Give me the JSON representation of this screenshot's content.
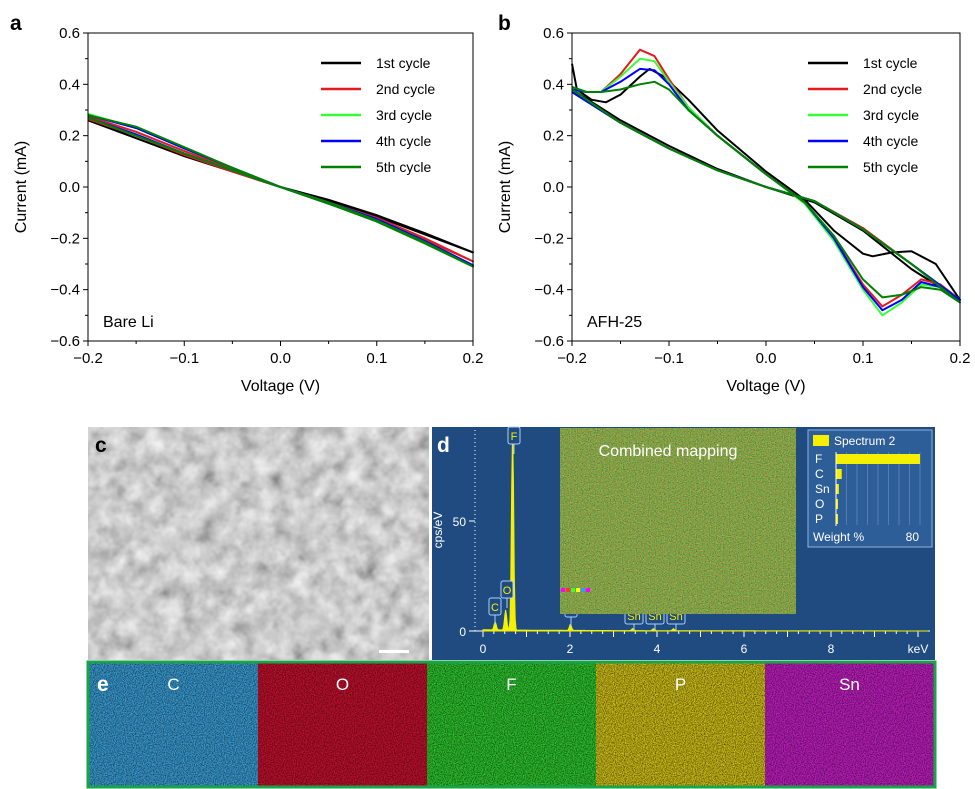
{
  "panel_labels": {
    "a": "a",
    "b": "b",
    "c": "c",
    "d": "d",
    "e": "e"
  },
  "legend_labels": [
    "1st cycle",
    "2nd cycle",
    "3rd cycle",
    "4th cycle",
    "5th cycle"
  ],
  "chart_data": [
    {
      "panel": "a",
      "type": "line",
      "title": "",
      "annotation": "Bare Li",
      "xlabel": "Voltage (V)",
      "ylabel": "Current (mA)",
      "xlim": [
        -0.2,
        0.2
      ],
      "ylim": [
        -0.6,
        0.6
      ],
      "xticks": [
        -0.2,
        -0.1,
        0.0,
        0.1,
        0.2
      ],
      "xtick_labels": [
        "−0.2",
        "−0.1",
        "0.0",
        "0.1",
        "0.2"
      ],
      "yticks": [
        -0.6,
        -0.4,
        -0.2,
        0.0,
        0.2,
        0.4,
        0.6
      ],
      "ytick_labels": [
        "−0.6",
        "−0.4",
        "−0.2",
        "0.0",
        "0.2",
        "0.4",
        "0.6"
      ],
      "legend": "top-right",
      "grid": false,
      "series": [
        {
          "name": "1st cycle",
          "color": "#000000",
          "points": [
            [
              -0.2,
              0.26
            ],
            [
              -0.15,
              0.19
            ],
            [
              -0.1,
              0.12
            ],
            [
              -0.05,
              0.06
            ],
            [
              0,
              0
            ],
            [
              0.05,
              -0.05
            ],
            [
              0.1,
              -0.11
            ],
            [
              0.15,
              -0.18
            ],
            [
              0.2,
              -0.255
            ],
            [
              0.15,
              -0.185
            ],
            [
              0.1,
              -0.115
            ],
            [
              0.05,
              -0.055
            ],
            [
              0,
              0
            ],
            [
              -0.05,
              0.065
            ],
            [
              -0.1,
              0.13
            ],
            [
              -0.15,
              0.2
            ],
            [
              -0.2,
              0.265
            ]
          ]
        },
        {
          "name": "2nd cycle",
          "color": "#e41a1c",
          "points": [
            [
              -0.2,
              0.265
            ],
            [
              -0.15,
              0.2
            ],
            [
              -0.1,
              0.125
            ],
            [
              -0.05,
              0.06
            ],
            [
              0,
              0
            ],
            [
              0.05,
              -0.06
            ],
            [
              0.1,
              -0.12
            ],
            [
              0.15,
              -0.2
            ],
            [
              0.2,
              -0.29
            ],
            [
              0.15,
              -0.205
            ],
            [
              0.1,
              -0.125
            ],
            [
              0.05,
              -0.06
            ],
            [
              0,
              0
            ],
            [
              -0.05,
              0.07
            ],
            [
              -0.1,
              0.14
            ],
            [
              -0.15,
              0.215
            ],
            [
              -0.2,
              0.275
            ]
          ]
        },
        {
          "name": "3rd cycle",
          "color": "#33ff33",
          "points": [
            [
              -0.2,
              0.27
            ],
            [
              -0.15,
              0.205
            ],
            [
              -0.1,
              0.13
            ],
            [
              -0.05,
              0.065
            ],
            [
              0,
              0
            ],
            [
              0.05,
              -0.06
            ],
            [
              0.1,
              -0.125
            ],
            [
              0.15,
              -0.21
            ],
            [
              0.2,
              -0.305
            ],
            [
              0.15,
              -0.215
            ],
            [
              0.1,
              -0.13
            ],
            [
              0.05,
              -0.065
            ],
            [
              0,
              0
            ],
            [
              -0.05,
              0.075
            ],
            [
              -0.1,
              0.15
            ],
            [
              -0.15,
              0.23
            ],
            [
              -0.2,
              0.285
            ]
          ]
        },
        {
          "name": "4th cycle",
          "color": "#0000ff",
          "points": [
            [
              -0.2,
              0.27
            ],
            [
              -0.15,
              0.205
            ],
            [
              -0.1,
              0.13
            ],
            [
              -0.05,
              0.065
            ],
            [
              0,
              0
            ],
            [
              0.05,
              -0.06
            ],
            [
              0.1,
              -0.125
            ],
            [
              0.15,
              -0.21
            ],
            [
              0.2,
              -0.305
            ],
            [
              0.15,
              -0.215
            ],
            [
              0.1,
              -0.13
            ],
            [
              0.05,
              -0.065
            ],
            [
              0,
              0
            ],
            [
              -0.05,
              0.075
            ],
            [
              -0.1,
              0.15
            ],
            [
              -0.15,
              0.23
            ],
            [
              -0.2,
              0.28
            ]
          ]
        },
        {
          "name": "5th cycle",
          "color": "#008000",
          "points": [
            [
              -0.2,
              0.27
            ],
            [
              -0.15,
              0.2
            ],
            [
              -0.1,
              0.13
            ],
            [
              -0.05,
              0.065
            ],
            [
              0,
              0
            ],
            [
              0.05,
              -0.06
            ],
            [
              0.1,
              -0.13
            ],
            [
              0.15,
              -0.215
            ],
            [
              0.2,
              -0.31
            ],
            [
              0.15,
              -0.22
            ],
            [
              0.1,
              -0.135
            ],
            [
              0.05,
              -0.065
            ],
            [
              0,
              0
            ],
            [
              -0.05,
              0.075
            ],
            [
              -0.1,
              0.155
            ],
            [
              -0.15,
              0.235
            ],
            [
              -0.2,
              0.28
            ]
          ]
        }
      ]
    },
    {
      "panel": "b",
      "type": "line",
      "title": "",
      "annotation": "AFH-25",
      "xlabel": "Voltage (V)",
      "ylabel": "Current (mA)",
      "xlim": [
        -0.2,
        0.2
      ],
      "ylim": [
        -0.6,
        0.6
      ],
      "xticks": [
        -0.2,
        -0.1,
        0.0,
        0.1,
        0.2
      ],
      "xtick_labels": [
        "−0.2",
        "−0.1",
        "0.0",
        "0.1",
        "0.2"
      ],
      "yticks": [
        -0.6,
        -0.4,
        -0.2,
        0.0,
        0.2,
        0.4,
        0.6
      ],
      "ytick_labels": [
        "−0.6",
        "−0.4",
        "−0.2",
        "0.0",
        "0.2",
        "0.4",
        "0.6"
      ],
      "legend": "top-right",
      "grid": false,
      "series": [
        {
          "name": "1st cycle",
          "color": "#000000",
          "points": [
            [
              -0.2,
              0.48
            ],
            [
              -0.195,
              0.38
            ],
            [
              -0.18,
              0.34
            ],
            [
              -0.165,
              0.33
            ],
            [
              -0.15,
              0.36
            ],
            [
              -0.13,
              0.43
            ],
            [
              -0.12,
              0.46
            ],
            [
              -0.105,
              0.43
            ],
            [
              -0.08,
              0.34
            ],
            [
              -0.05,
              0.22
            ],
            [
              0,
              0.06
            ],
            [
              0.04,
              -0.05
            ],
            [
              0.07,
              -0.17
            ],
            [
              0.09,
              -0.23
            ],
            [
              0.1,
              -0.26
            ],
            [
              0.11,
              -0.27
            ],
            [
              0.13,
              -0.255
            ],
            [
              0.15,
              -0.25
            ],
            [
              0.175,
              -0.3
            ],
            [
              0.2,
              -0.44
            ],
            [
              0.15,
              -0.32
            ],
            [
              0.1,
              -0.17
            ],
            [
              0.05,
              -0.06
            ],
            [
              0,
              0
            ],
            [
              -0.05,
              0.07
            ],
            [
              -0.1,
              0.16
            ],
            [
              -0.15,
              0.26
            ],
            [
              -0.2,
              0.38
            ]
          ]
        },
        {
          "name": "2nd cycle",
          "color": "#e41a1c",
          "points": [
            [
              -0.2,
              0.38
            ],
            [
              -0.185,
              0.37
            ],
            [
              -0.17,
              0.37
            ],
            [
              -0.15,
              0.44
            ],
            [
              -0.13,
              0.535
            ],
            [
              -0.115,
              0.51
            ],
            [
              -0.1,
              0.42
            ],
            [
              -0.08,
              0.31
            ],
            [
              -0.05,
              0.2
            ],
            [
              0,
              0.05
            ],
            [
              0.04,
              -0.06
            ],
            [
              0.07,
              -0.2
            ],
            [
              0.1,
              -0.38
            ],
            [
              0.12,
              -0.465
            ],
            [
              0.14,
              -0.42
            ],
            [
              0.16,
              -0.36
            ],
            [
              0.18,
              -0.38
            ],
            [
              0.2,
              -0.44
            ],
            [
              0.15,
              -0.3
            ],
            [
              0.1,
              -0.16
            ],
            [
              0.05,
              -0.055
            ],
            [
              0,
              0
            ],
            [
              -0.05,
              0.065
            ],
            [
              -0.1,
              0.15
            ],
            [
              -0.15,
              0.25
            ],
            [
              -0.2,
              0.37
            ]
          ]
        },
        {
          "name": "3rd cycle",
          "color": "#33ff33",
          "points": [
            [
              -0.2,
              0.38
            ],
            [
              -0.185,
              0.37
            ],
            [
              -0.17,
              0.37
            ],
            [
              -0.15,
              0.43
            ],
            [
              -0.13,
              0.5
            ],
            [
              -0.115,
              0.49
            ],
            [
              -0.1,
              0.41
            ],
            [
              -0.08,
              0.31
            ],
            [
              -0.05,
              0.2
            ],
            [
              0,
              0.05
            ],
            [
              0.04,
              -0.065
            ],
            [
              0.07,
              -0.21
            ],
            [
              0.1,
              -0.4
            ],
            [
              0.12,
              -0.5
            ],
            [
              0.14,
              -0.45
            ],
            [
              0.16,
              -0.38
            ],
            [
              0.18,
              -0.39
            ],
            [
              0.2,
              -0.44
            ],
            [
              0.15,
              -0.3
            ],
            [
              0.1,
              -0.165
            ],
            [
              0.05,
              -0.055
            ],
            [
              0,
              0
            ],
            [
              -0.05,
              0.065
            ],
            [
              -0.1,
              0.15
            ],
            [
              -0.15,
              0.25
            ],
            [
              -0.2,
              0.37
            ]
          ]
        },
        {
          "name": "4th cycle",
          "color": "#0000ff",
          "points": [
            [
              -0.2,
              0.38
            ],
            [
              -0.185,
              0.37
            ],
            [
              -0.17,
              0.37
            ],
            [
              -0.15,
              0.41
            ],
            [
              -0.13,
              0.46
            ],
            [
              -0.115,
              0.455
            ],
            [
              -0.1,
              0.4
            ],
            [
              -0.08,
              0.3
            ],
            [
              -0.05,
              0.2
            ],
            [
              0,
              0.05
            ],
            [
              0.04,
              -0.06
            ],
            [
              0.07,
              -0.2
            ],
            [
              0.1,
              -0.39
            ],
            [
              0.12,
              -0.48
            ],
            [
              0.14,
              -0.44
            ],
            [
              0.16,
              -0.37
            ],
            [
              0.18,
              -0.39
            ],
            [
              0.2,
              -0.44
            ],
            [
              0.15,
              -0.3
            ],
            [
              0.1,
              -0.165
            ],
            [
              0.05,
              -0.055
            ],
            [
              0,
              0
            ],
            [
              -0.05,
              0.065
            ],
            [
              -0.1,
              0.15
            ],
            [
              -0.15,
              0.25
            ],
            [
              -0.2,
              0.37
            ]
          ]
        },
        {
          "name": "5th cycle",
          "color": "#008000",
          "points": [
            [
              -0.2,
              0.39
            ],
            [
              -0.185,
              0.37
            ],
            [
              -0.17,
              0.37
            ],
            [
              -0.15,
              0.38
            ],
            [
              -0.13,
              0.4
            ],
            [
              -0.115,
              0.41
            ],
            [
              -0.1,
              0.38
            ],
            [
              -0.08,
              0.3
            ],
            [
              -0.05,
              0.2
            ],
            [
              0,
              0.05
            ],
            [
              0.04,
              -0.06
            ],
            [
              0.07,
              -0.19
            ],
            [
              0.1,
              -0.36
            ],
            [
              0.12,
              -0.43
            ],
            [
              0.14,
              -0.42
            ],
            [
              0.16,
              -0.39
            ],
            [
              0.18,
              -0.4
            ],
            [
              0.2,
              -0.45
            ],
            [
              0.15,
              -0.3
            ],
            [
              0.1,
              -0.165
            ],
            [
              0.05,
              -0.055
            ],
            [
              0,
              0
            ],
            [
              -0.05,
              0.065
            ],
            [
              -0.1,
              0.15
            ],
            [
              -0.15,
              0.25
            ],
            [
              -0.2,
              0.38
            ]
          ]
        }
      ]
    },
    {
      "panel": "d",
      "type": "line",
      "title": "",
      "xlabel": "keV",
      "ylabel": "cps/eV",
      "xlim": [
        0,
        10
      ],
      "ylim": [
        0,
        100
      ],
      "xticks": [
        0,
        2,
        4,
        6,
        8
      ],
      "xtick_labels": [
        "0",
        "2",
        "4",
        "6",
        "8"
      ],
      "yticks": [
        0,
        50
      ],
      "ytick_labels": [
        "0",
        "50"
      ],
      "peaks": [
        {
          "element": "C",
          "energy": 0.28,
          "height": 4
        },
        {
          "element": "O",
          "energy": 0.52,
          "height": 10
        },
        {
          "element": "F",
          "energy": 0.68,
          "height": 100
        },
        {
          "element": "P",
          "energy": 2.01,
          "height": 3
        },
        {
          "element": "Sn",
          "energy": 3.44,
          "height": 1
        },
        {
          "element": "Sn",
          "energy": 3.92,
          "height": 1
        },
        {
          "element": "Sn",
          "energy": 4.38,
          "height": 1
        }
      ],
      "inset_bar": {
        "type": "bar",
        "legend": "Spectrum 2",
        "xlabel": "Weight %",
        "xtick_label": "80",
        "categories": [
          "F",
          "C",
          "Sn",
          "O",
          "P"
        ],
        "values": [
          88,
          6,
          3,
          2,
          1
        ]
      },
      "inset_map_title": "Combined mapping"
    }
  ],
  "panel_c": {
    "scale_bar": ""
  },
  "panel_e": {
    "maps": [
      {
        "element": "C",
        "color": "#3a9fd8"
      },
      {
        "element": "O",
        "color": "#c8102e"
      },
      {
        "element": "F",
        "color": "#2ec92e"
      },
      {
        "element": "P",
        "color": "#d4c418"
      },
      {
        "element": "Sn",
        "color": "#c41ec4"
      }
    ],
    "frame_color": "#1aa34a"
  }
}
